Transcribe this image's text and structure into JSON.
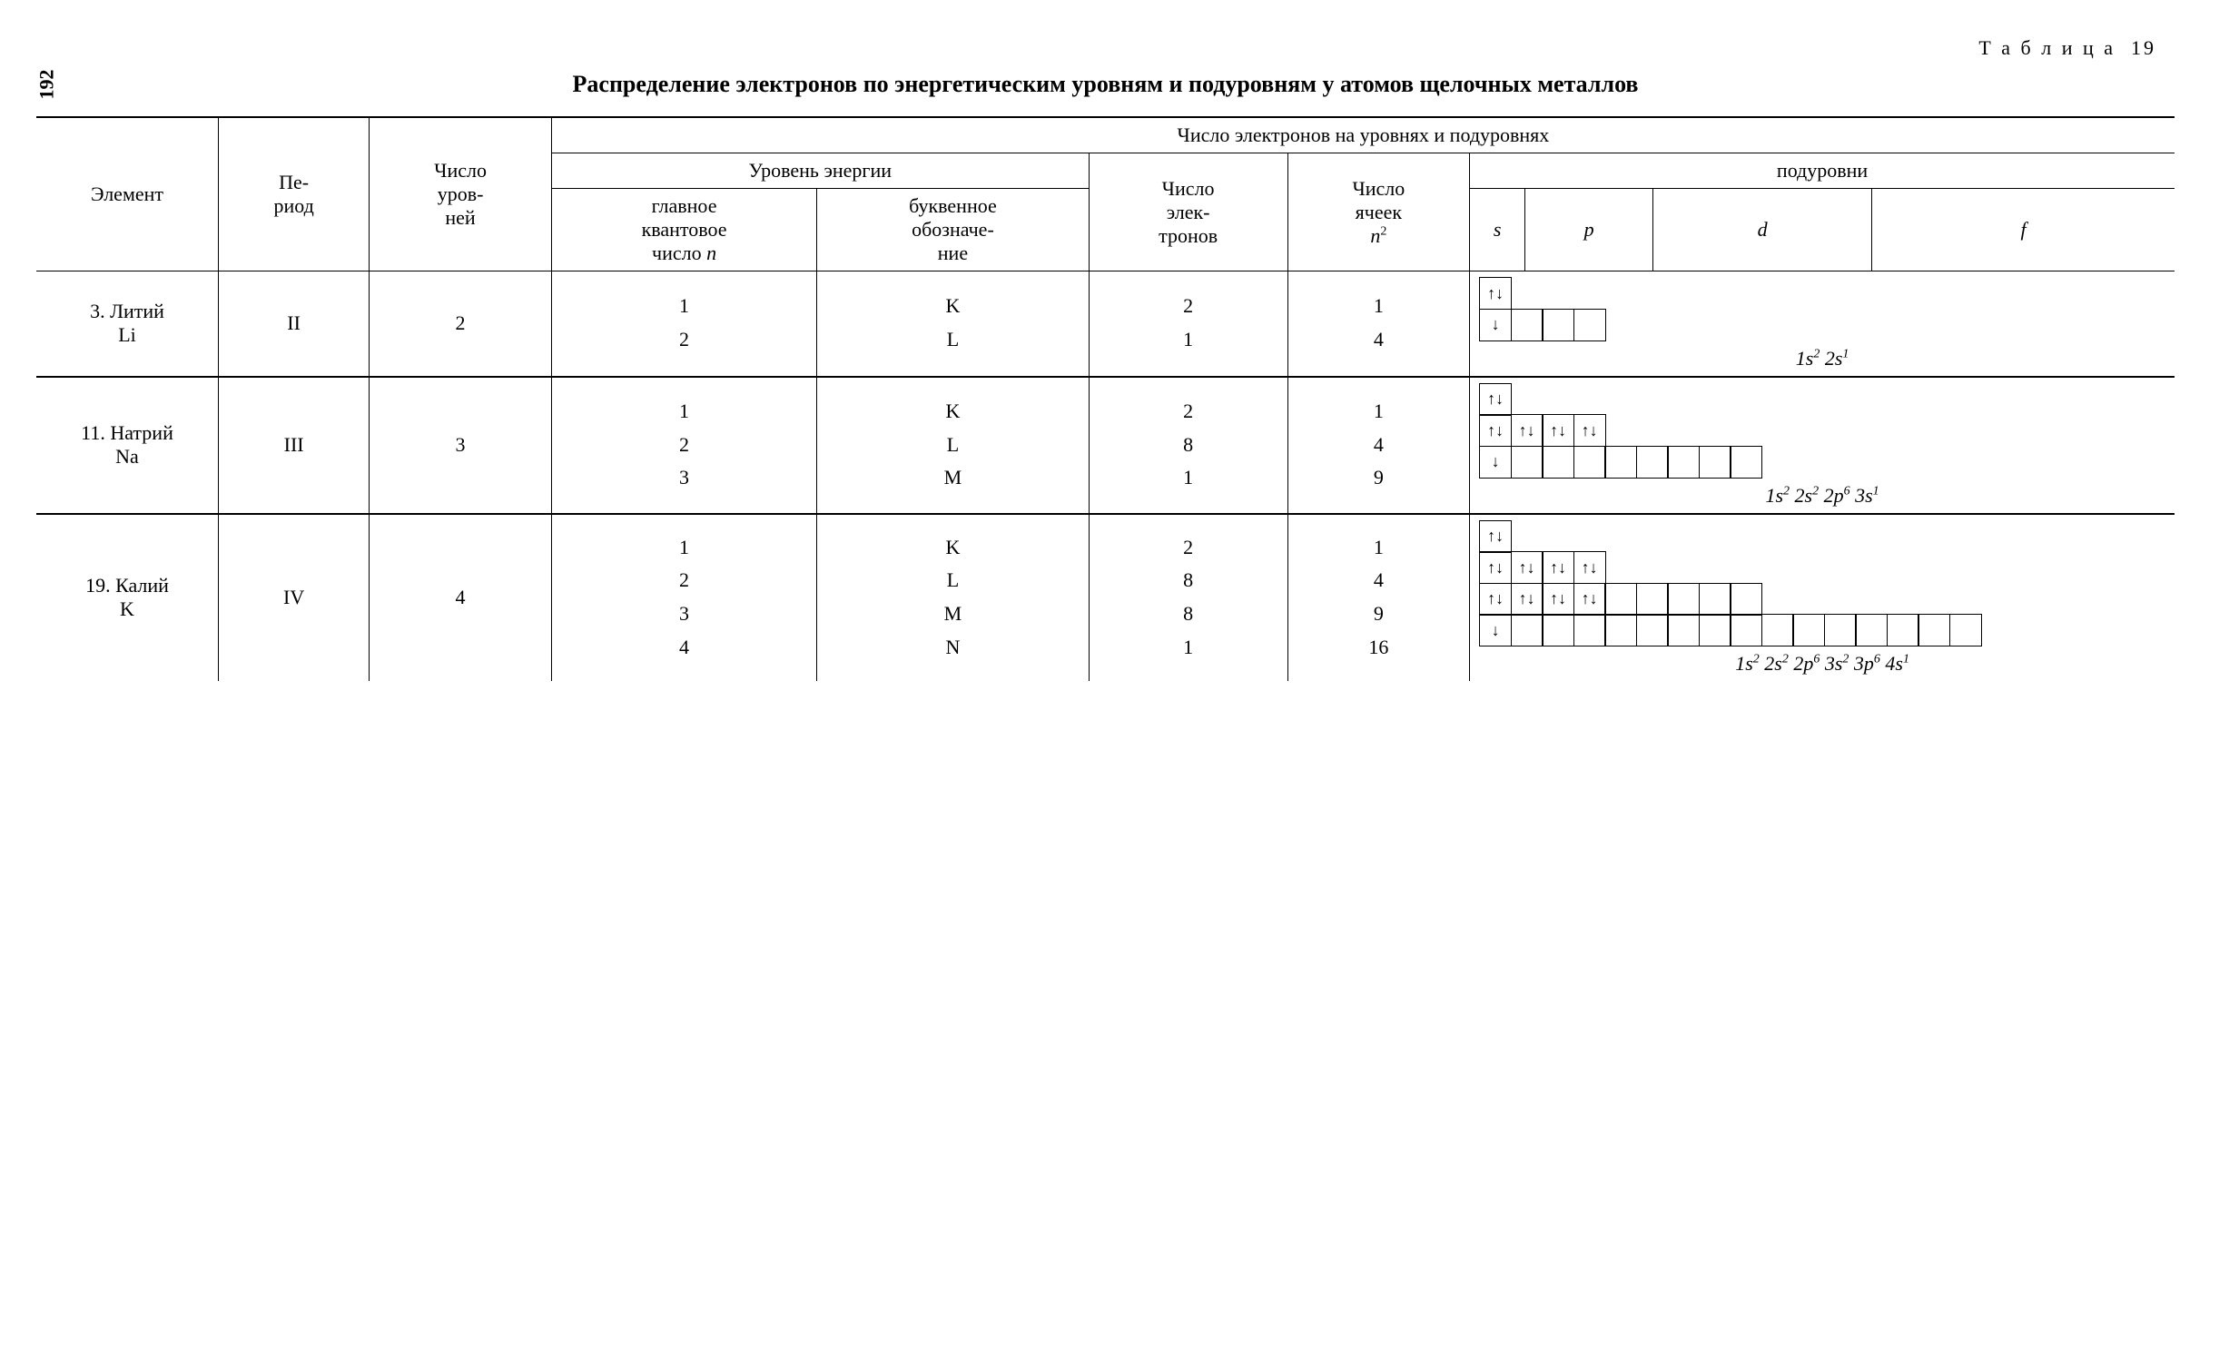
{
  "page_number": "192",
  "table_label": "Т а б л и ц а  19",
  "title": "Распределение электронов по энергетическим уровням и подуровням у атомов щелочных металлов",
  "headers": {
    "element": "Элемент",
    "period": "Пе-\nриод",
    "num_levels": "Число\nуров-\nней",
    "electrons_on_levels": "Число электронов на уровнях и подуровнях",
    "energy_level": "Уровень энергии",
    "main_quantum": "главное\nквантовое\nчисло n",
    "letter_desig": "буквенное\nобозначе-\nние",
    "num_electrons": "Число\nэлек-\nтронов",
    "num_cells": "Число\nячеек\nn²",
    "sublevels": "подуровни",
    "s": "s",
    "p": "p",
    "d": "d",
    "f": "f"
  },
  "rows": [
    {
      "element_num": "3.",
      "element_name": "Литий",
      "element_symbol": "Li",
      "period": "II",
      "num_levels": "2",
      "levels": [
        {
          "n": "1",
          "letter": "K",
          "electrons": "2",
          "cells": "1"
        },
        {
          "n": "2",
          "letter": "L",
          "electrons": "1",
          "cells": "4"
        }
      ],
      "orbital_rows": [
        {
          "cells": [
            {
              "fill": "↑↓"
            }
          ]
        },
        {
          "cells": [
            {
              "fill": "↓"
            },
            {
              "fill": ""
            },
            {
              "fill": ""
            },
            {
              "fill": ""
            }
          ]
        }
      ],
      "config_html": "1s<sup>2</sup> 2s<sup>1</sup>"
    },
    {
      "element_num": "11.",
      "element_name": "Натрий",
      "element_symbol": "Na",
      "period": "III",
      "num_levels": "3",
      "levels": [
        {
          "n": "1",
          "letter": "K",
          "electrons": "2",
          "cells": "1"
        },
        {
          "n": "2",
          "letter": "L",
          "electrons": "8",
          "cells": "4"
        },
        {
          "n": "3",
          "letter": "M",
          "electrons": "1",
          "cells": "9"
        }
      ],
      "orbital_rows": [
        {
          "cells": [
            {
              "fill": "↑↓"
            }
          ]
        },
        {
          "cells": [
            {
              "fill": "↑↓"
            },
            {
              "fill": "↑↓"
            },
            {
              "fill": "↑↓"
            },
            {
              "fill": "↑↓"
            }
          ]
        },
        {
          "cells": [
            {
              "fill": "↓"
            },
            {
              "fill": ""
            },
            {
              "fill": ""
            },
            {
              "fill": ""
            },
            {
              "fill": ""
            },
            {
              "fill": ""
            },
            {
              "fill": ""
            },
            {
              "fill": ""
            },
            {
              "fill": ""
            }
          ]
        }
      ],
      "config_html": "1s<sup>2</sup> 2s<sup>2</sup> 2p<sup>6</sup> 3s<sup>1</sup>"
    },
    {
      "element_num": "19.",
      "element_name": "Калий",
      "element_symbol": "K",
      "period": "IV",
      "num_levels": "4",
      "levels": [
        {
          "n": "1",
          "letter": "K",
          "electrons": "2",
          "cells": "1"
        },
        {
          "n": "2",
          "letter": "L",
          "electrons": "8",
          "cells": "4"
        },
        {
          "n": "3",
          "letter": "M",
          "electrons": "8",
          "cells": "9"
        },
        {
          "n": "4",
          "letter": "N",
          "electrons": "1",
          "cells": "16"
        }
      ],
      "orbital_rows": [
        {
          "cells": [
            {
              "fill": "↑↓"
            }
          ]
        },
        {
          "cells": [
            {
              "fill": "↑↓"
            },
            {
              "fill": "↑↓"
            },
            {
              "fill": "↑↓"
            },
            {
              "fill": "↑↓"
            }
          ]
        },
        {
          "cells": [
            {
              "fill": "↑↓"
            },
            {
              "fill": "↑↓"
            },
            {
              "fill": "↑↓"
            },
            {
              "fill": "↑↓"
            },
            {
              "fill": ""
            },
            {
              "fill": ""
            },
            {
              "fill": ""
            },
            {
              "fill": ""
            },
            {
              "fill": ""
            }
          ]
        },
        {
          "cells": [
            {
              "fill": "↓"
            },
            {
              "fill": ""
            },
            {
              "fill": ""
            },
            {
              "fill": ""
            },
            {
              "fill": ""
            },
            {
              "fill": ""
            },
            {
              "fill": ""
            },
            {
              "fill": ""
            },
            {
              "fill": ""
            },
            {
              "fill": ""
            },
            {
              "fill": ""
            },
            {
              "fill": ""
            },
            {
              "fill": ""
            },
            {
              "fill": ""
            },
            {
              "fill": ""
            },
            {
              "fill": ""
            }
          ]
        }
      ],
      "config_html": "1s<sup>2</sup> 2s<sup>2</sup> 2p<sup>6</sup> 3s<sup>2</sup> 3p<sup>6</sup> 4s<sup>1</sup>"
    }
  ]
}
